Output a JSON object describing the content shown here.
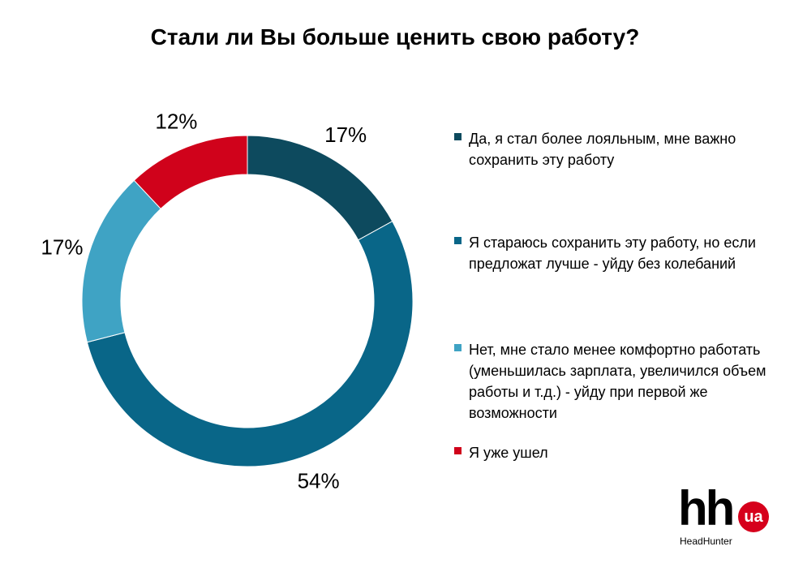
{
  "chart_data": {
    "type": "pie",
    "donut": true,
    "title": "Стали ли Вы больше ценить свою работу?",
    "slices": [
      {
        "label": "Да, я стал более лояльным, мне важно сохранить эту работу",
        "value": 17,
        "display": "17%",
        "color": "#0d4a5e"
      },
      {
        "label": "Я стараюсь сохранить эту работу, но если предложат лучше - уйду без колебаний",
        "value": 54,
        "display": "54%",
        "color": "#096688"
      },
      {
        "label": "Нет, мне стало менее комфортно работать (уменьшилась зарплата, увеличился объем работы и т.д.) - уйду при первой же возможности",
        "value": 17,
        "display": "17%",
        "color": "#3fa3c4"
      },
      {
        "label": "Я уже ушел",
        "value": 12,
        "display": "12%",
        "color": "#d0021b"
      }
    ],
    "legend_position": "right"
  },
  "logo": {
    "mark": "hh",
    "badge": "ua",
    "brand": "HeadHunter"
  }
}
